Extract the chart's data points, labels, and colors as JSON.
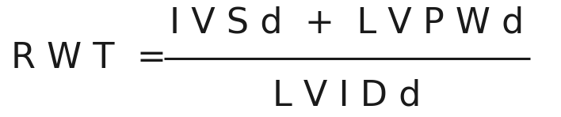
{
  "background_color": "#ffffff",
  "text_color": "#1a1a1a",
  "lhs": "RWT  =",
  "numerator": "IVSd + LVPWd",
  "denominator": "LVIDd",
  "fontsize": 32,
  "fig_width": 7.08,
  "fig_height": 1.48,
  "dpi": 100
}
